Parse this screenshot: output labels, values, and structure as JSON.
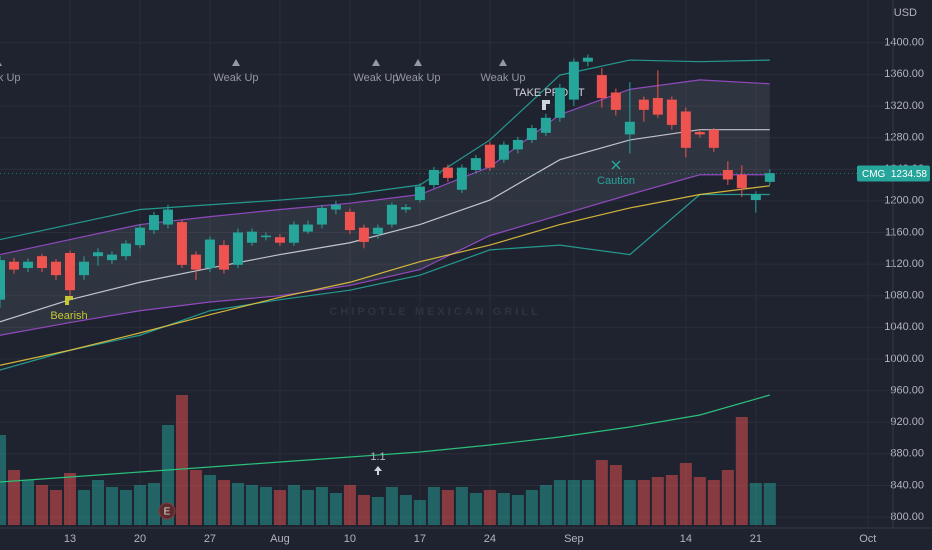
{
  "chart_data": {
    "type": "candlestick",
    "symbol": "CMG",
    "currency": "USD",
    "last_price": 1234.58,
    "colors": {
      "up": "#26a69a",
      "down": "#ef5350",
      "last_price": "#26a69a"
    },
    "grid": true,
    "xlim": [
      0,
      63.8
    ],
    "xticks": [
      {
        "value": 5,
        "label": "13"
      },
      {
        "value": 10,
        "label": "20"
      },
      {
        "value": 15,
        "label": "27"
      },
      {
        "value": 20,
        "label": "Aug"
      },
      {
        "value": 25,
        "label": "10"
      },
      {
        "value": 30,
        "label": "17"
      },
      {
        "value": 35,
        "label": "24"
      },
      {
        "value": 41,
        "label": "Sep"
      },
      {
        "value": 49,
        "label": "14"
      },
      {
        "value": 54,
        "label": "21"
      },
      {
        "value": 62,
        "label": "Oct"
      }
    ],
    "ylim": [
      790,
      1454
    ],
    "yticks": [
      {
        "value": 800,
        "label": "800.00"
      },
      {
        "value": 840,
        "label": "840.00"
      },
      {
        "value": 880,
        "label": "880.00"
      },
      {
        "value": 920,
        "label": "920.00"
      },
      {
        "value": 960,
        "label": "960.00"
      },
      {
        "value": 1000,
        "label": "1000.00"
      },
      {
        "value": 1040,
        "label": "1040.00"
      },
      {
        "value": 1080,
        "label": "1080.00"
      },
      {
        "value": 1120,
        "label": "1120.00"
      },
      {
        "value": 1160,
        "label": "1160.00"
      },
      {
        "value": 1200,
        "label": "1200.00"
      },
      {
        "value": 1240,
        "label": "1240.00"
      },
      {
        "value": 1280,
        "label": "1280.00"
      },
      {
        "value": 1320,
        "label": "1320.00"
      },
      {
        "value": 1360,
        "label": "1360.00"
      },
      {
        "value": 1400,
        "label": "1400.00"
      }
    ],
    "open": [
      1075,
      1123,
      1115,
      1130,
      1123,
      1134,
      1106,
      1130,
      1125,
      1130,
      1144,
      1163,
      1170,
      1173,
      1132,
      1115,
      1144,
      1119,
      1147,
      1154,
      1154,
      1147,
      1161,
      1170,
      1189,
      1186,
      1166,
      1158,
      1170,
      1189,
      1201,
      1220,
      1242,
      1214,
      1239,
      1271,
      1252,
      1265,
      1277,
      1286,
      1305,
      1328,
      1376,
      1359,
      1337,
      1284,
      1328,
      1330,
      1328,
      1313,
      1287,
      1290,
      1239,
      1233,
      1201,
      1224
    ],
    "high": [
      1130,
      1128,
      1127,
      1133,
      1126,
      1137,
      1130,
      1140,
      1136,
      1150,
      1170,
      1186,
      1195,
      1176,
      1136,
      1155,
      1150,
      1165,
      1165,
      1160,
      1158,
      1174,
      1175,
      1195,
      1200,
      1190,
      1170,
      1170,
      1198,
      1196,
      1222,
      1243,
      1246,
      1246,
      1258,
      1275,
      1275,
      1281,
      1296,
      1310,
      1348,
      1380,
      1385,
      1368,
      1342,
      1350,
      1332,
      1365,
      1332,
      1318,
      1290,
      1292,
      1250,
      1245,
      1212,
      1240
    ],
    "low": [
      1065,
      1108,
      1110,
      1110,
      1100,
      1080,
      1100,
      1118,
      1120,
      1125,
      1140,
      1158,
      1165,
      1115,
      1100,
      1110,
      1108,
      1115,
      1143,
      1150,
      1143,
      1143,
      1158,
      1165,
      1183,
      1158,
      1140,
      1152,
      1166,
      1185,
      1198,
      1216,
      1224,
      1210,
      1235,
      1238,
      1248,
      1260,
      1273,
      1282,
      1300,
      1320,
      1370,
      1318,
      1308,
      1260,
      1300,
      1305,
      1290,
      1255,
      1280,
      1262,
      1220,
      1205,
      1185,
      1220
    ],
    "close": [
      1125,
      1113,
      1123,
      1115,
      1106,
      1087,
      1123,
      1135,
      1132,
      1146,
      1166,
      1182,
      1189,
      1119,
      1113,
      1151,
      1113,
      1160,
      1161,
      1156,
      1147,
      1170,
      1170,
      1191,
      1195,
      1163,
      1148,
      1166,
      1195,
      1192,
      1218,
      1239,
      1229,
      1242,
      1254,
      1242,
      1271,
      1277,
      1292,
      1305,
      1343,
      1376,
      1381,
      1330,
      1315,
      1300,
      1315,
      1309,
      1296,
      1267,
      1284,
      1267,
      1227,
      1216,
      1208,
      1235
    ],
    "volume": [
      90,
      55,
      45,
      40,
      35,
      52,
      35,
      45,
      38,
      35,
      40,
      42,
      100,
      130,
      55,
      50,
      45,
      42,
      40,
      38,
      35,
      40,
      35,
      38,
      32,
      40,
      30,
      28,
      38,
      30,
      25,
      38,
      35,
      38,
      32,
      35,
      32,
      30,
      35,
      40,
      45,
      45,
      45,
      65,
      60,
      45,
      45,
      48,
      50,
      62,
      48,
      45,
      55,
      108,
      42,
      42
    ],
    "volume_ylim": [
      0,
      130
    ],
    "line_x": [
      0,
      5,
      10,
      15,
      20,
      25,
      30,
      35,
      40,
      45,
      50,
      55
    ],
    "lines": [
      {
        "color": "#26a69a",
        "values": [
          1151,
          1170,
          1189,
          1195,
          1201,
          1208,
          1220,
          1277,
          1359,
          1378,
          1376,
          1378
        ]
      },
      {
        "color": "#9c4dcc",
        "values": [
          1132,
          1151,
          1170,
          1180,
          1189,
          1197,
          1208,
          1243,
          1309,
          1341,
          1353,
          1348
        ]
      },
      {
        "color": "#9c4dcc",
        "values": [
          1030,
          1046,
          1061,
          1072,
          1080,
          1093,
          1113,
          1156,
          1182,
          1208,
          1233,
          1233
        ]
      },
      {
        "color": "#26a69a",
        "values": [
          986,
          1011,
          1030,
          1061,
          1075,
          1087,
          1106,
          1138,
          1144,
          1132,
          1208,
          1208
        ]
      },
      {
        "color": "#d1d4dc",
        "values": [
          1047,
          1075,
          1097,
          1115,
          1132,
          1147,
          1170,
          1201,
          1252,
          1277,
          1290,
          1290
        ]
      },
      {
        "color": "#e8c33a",
        "values": [
          992,
          1011,
          1033,
          1056,
          1078,
          1097,
          1123,
          1144,
          1170,
          1191,
          1208,
          1219
        ]
      }
    ],
    "volume_ma": {
      "color": "#2bbf7a",
      "values": [
        43,
        48,
        53,
        58,
        63,
        68,
        73,
        80,
        88,
        98,
        110,
        130
      ]
    },
    "annotations": [
      {
        "label": "Weak Up"
      },
      {
        "label": "Weak Up"
      },
      {
        "label": "Weak Up"
      },
      {
        "label": "Weak Up"
      },
      {
        "label": "Weak Up"
      },
      {
        "label": "TAKE PROFIT"
      },
      {
        "label": "Bearish"
      },
      {
        "label": "Caution"
      },
      {
        "label": "1.1"
      },
      {
        "label": "E"
      }
    ],
    "watermark": "CHIPOTLE MEXICAN GRILL"
  }
}
